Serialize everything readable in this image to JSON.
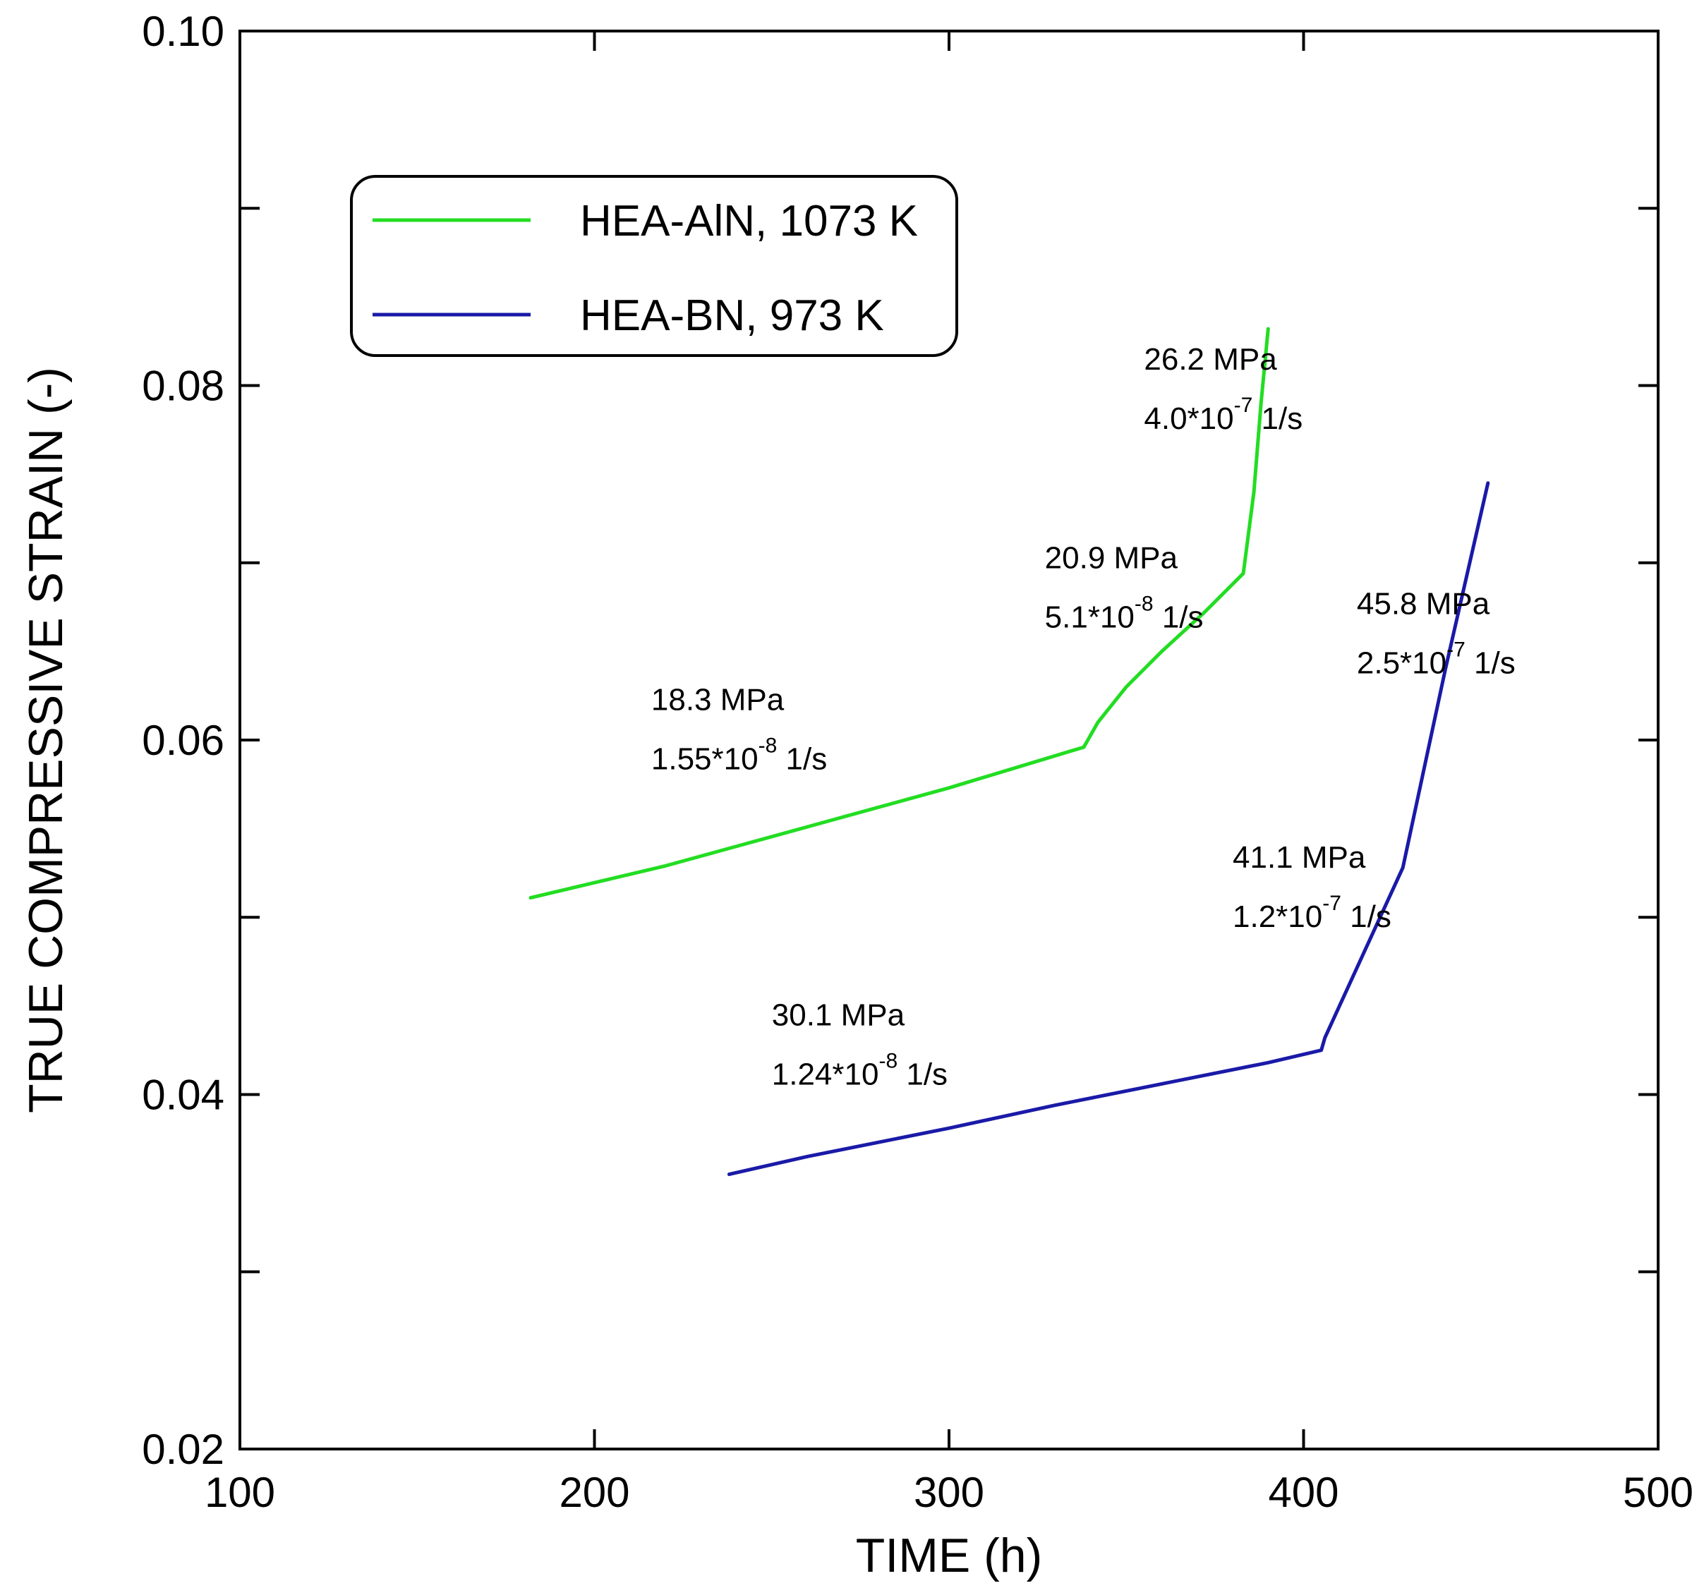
{
  "chart_data": {
    "type": "line",
    "title": "",
    "xlabel": "TIME (h)",
    "ylabel": "TRUE COMPRESSIVE STRAIN (-)",
    "xlim": [
      100,
      500
    ],
    "ylim": [
      0.02,
      0.1
    ],
    "xticks": [
      100,
      200,
      300,
      400,
      500
    ],
    "xtick_labels": [
      "100",
      "200",
      "300",
      "400",
      "500"
    ],
    "yticks": [
      0.02,
      0.03,
      0.04,
      0.05,
      0.06,
      0.07,
      0.08,
      0.09,
      0.1
    ],
    "ytick_labels": [
      "0.02",
      "",
      "0.04",
      "",
      "0.06",
      "",
      "0.08",
      "",
      "0.10"
    ],
    "grid": false,
    "legend_position": "top-left",
    "series": [
      {
        "name": "HEA-AlN, 1073 K",
        "color": "#22dd22",
        "points": [
          [
            182,
            0.0511
          ],
          [
            220,
            0.0529
          ],
          [
            260,
            0.0551
          ],
          [
            300,
            0.0573
          ],
          [
            338,
            0.0596
          ],
          [
            342,
            0.061
          ],
          [
            350,
            0.063
          ],
          [
            360,
            0.065
          ],
          [
            372,
            0.0672
          ],
          [
            383,
            0.0694
          ],
          [
            386,
            0.074
          ],
          [
            388,
            0.079
          ],
          [
            390,
            0.0832
          ]
        ]
      },
      {
        "name": "HEA-BN, 973 K",
        "color": "#1a1aa8",
        "points": [
          [
            238,
            0.0355
          ],
          [
            260,
            0.0365
          ],
          [
            280,
            0.0373
          ],
          [
            300,
            0.0381
          ],
          [
            330,
            0.0394
          ],
          [
            360,
            0.0406
          ],
          [
            390,
            0.0418
          ],
          [
            405,
            0.0425
          ],
          [
            406,
            0.0432
          ],
          [
            417,
            0.048
          ],
          [
            428,
            0.0528
          ],
          [
            440,
            0.064
          ],
          [
            452,
            0.0745
          ]
        ]
      }
    ],
    "annotations": [
      {
        "stress": "26.2 MPa",
        "rate_base": "4.0*10",
        "rate_exp": "-7",
        "rate_unit": " 1/s",
        "x": 355,
        "y": 0.0809
      },
      {
        "stress": "20.9 MPa",
        "rate_base": "5.1*10",
        "rate_exp": "-8",
        "rate_unit": " 1/s",
        "x": 327,
        "y": 0.0697
      },
      {
        "stress": "18.3 MPa",
        "rate_base": "1.55*10",
        "rate_exp": "-8",
        "rate_unit": " 1/s",
        "x": 216,
        "y": 0.0617
      },
      {
        "stress": "45.8 MPa",
        "rate_base": "2.5*10",
        "rate_exp": "-7",
        "rate_unit": " 1/s",
        "x": 415,
        "y": 0.0671
      },
      {
        "stress": "41.1 MPa",
        "rate_base": "1.2*10",
        "rate_exp": "-7",
        "rate_unit": " 1/s",
        "x": 380,
        "y": 0.0528
      },
      {
        "stress": "30.1 MPa",
        "rate_base": "1.24*10",
        "rate_exp": "-8",
        "rate_unit": " 1/s",
        "x": 250,
        "y": 0.0439
      }
    ]
  }
}
